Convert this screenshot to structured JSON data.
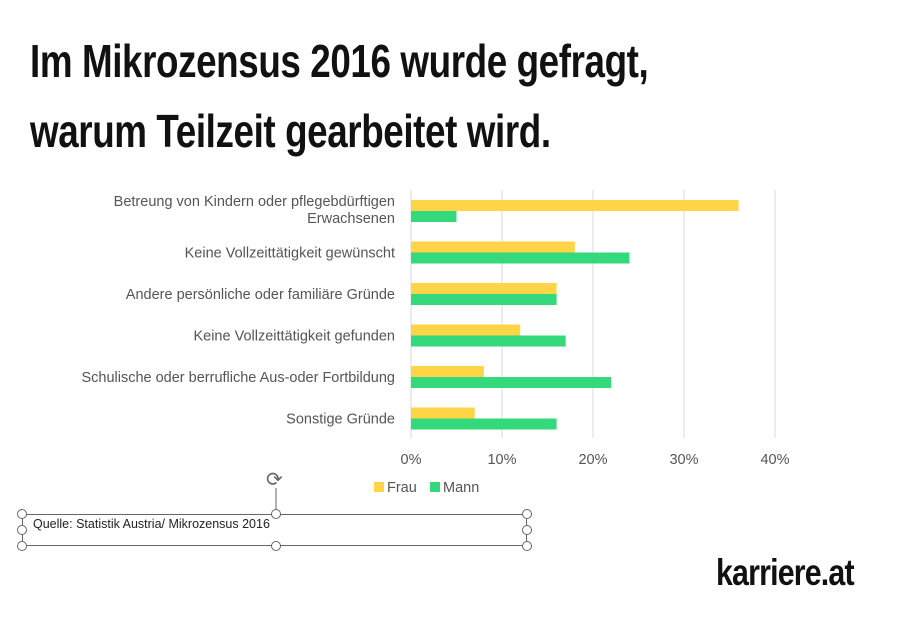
{
  "title_lines": [
    "Im Mikrozensus 2016 wurde gefragt,",
    "warum Teilzeit gearbeitet wird."
  ],
  "source": "Quelle: Statistik Austria/ Mikrozensus 2016",
  "logo": "karriere.at",
  "chart_data": {
    "type": "bar",
    "orientation": "horizontal",
    "categories": [
      [
        "Betreung von Kindern oder pflegebdürftigen",
        "Erwachsenen"
      ],
      [
        "Keine Vollzeittätigkeit gewünscht"
      ],
      [
        "Andere persönliche oder familiäre Gründe"
      ],
      [
        "Keine Vollzeittätigkeit gefunden"
      ],
      [
        "Schulische oder berrufliche Aus-oder Fortbildung"
      ],
      [
        "Sonstige Gründe"
      ]
    ],
    "series": [
      {
        "name": "Frau",
        "color": "#FFD447",
        "values": [
          36,
          18,
          16,
          12,
          8,
          7
        ]
      },
      {
        "name": "Mann",
        "color": "#33D97A",
        "values": [
          5,
          24,
          16,
          17,
          22,
          16
        ]
      }
    ],
    "xlim": [
      0,
      40
    ],
    "xticks": [
      "0%",
      "10%",
      "20%",
      "30%",
      "40%"
    ],
    "grid": true,
    "legend": "bottom"
  }
}
